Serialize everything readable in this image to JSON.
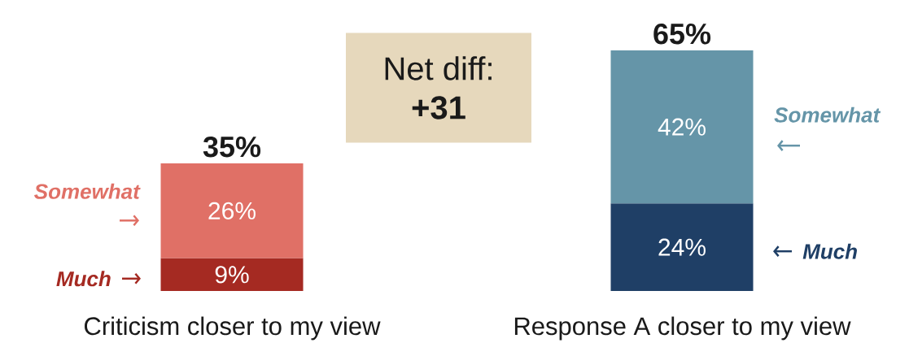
{
  "chart_data": {
    "type": "bar",
    "stacked": true,
    "categories": [
      "Criticism closer to my view",
      "Response A closer to my view"
    ],
    "series": [
      {
        "name": "Much",
        "colors": [
          "#a52a22",
          "#1f3f66"
        ],
        "values": [
          9,
          24
        ],
        "value_labels": [
          "9%",
          "24%"
        ]
      },
      {
        "name": "Somewhat",
        "colors": [
          "#e07066",
          "#6595a8"
        ],
        "values": [
          26,
          42
        ],
        "value_labels": [
          "26%",
          "42%"
        ]
      }
    ],
    "totals": [
      "35%",
      "65%"
    ],
    "annotations": [
      "Net diff:",
      "+31"
    ]
  }
}
